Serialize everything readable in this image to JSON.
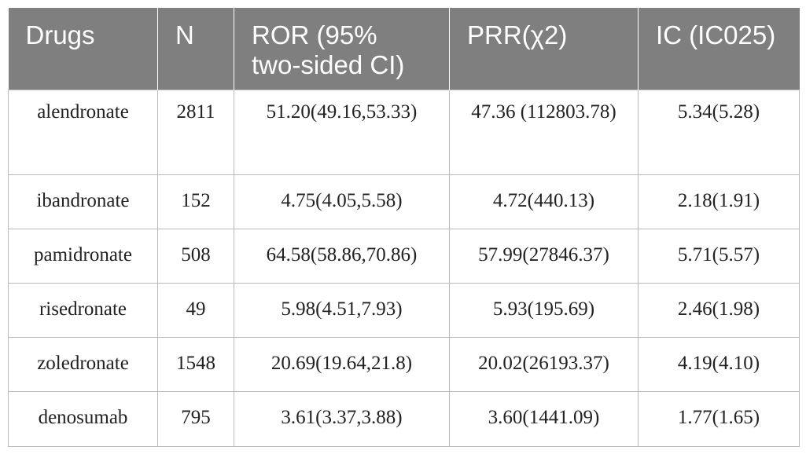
{
  "table": {
    "headers": {
      "drugs": "Drugs",
      "n": "N",
      "ror": "ROR (95% two-sided CI)",
      "prr": "PRR(χ2)",
      "ic": "IC (IC025)"
    },
    "rows": [
      {
        "drug": "alendronate",
        "n": "2811",
        "ror": "51.20(49.16,53.33)",
        "prr": "47.36 (112803.78)",
        "ic": "5.34(5.28)"
      },
      {
        "drug": "ibandronate",
        "n": "152",
        "ror": "4.75(4.05,5.58)",
        "prr": "4.72(440.13)",
        "ic": "2.18(1.91)"
      },
      {
        "drug": "pamidronate",
        "n": "508",
        "ror": "64.58(58.86,70.86)",
        "prr": "57.99(27846.37)",
        "ic": "5.71(5.57)"
      },
      {
        "drug": "risedronate",
        "n": "49",
        "ror": "5.98(4.51,7.93)",
        "prr": "5.93(195.69)",
        "ic": "2.46(1.98)"
      },
      {
        "drug": "zoledronate",
        "n": "1548",
        "ror": "20.69(19.64,21.8)",
        "prr": "20.02(26193.37)",
        "ic": "4.19(4.10)"
      },
      {
        "drug": "denosumab",
        "n": "795",
        "ror": "3.61(3.37,3.88)",
        "prr": "3.60(1441.09)",
        "ic": "1.77(1.65)"
      }
    ]
  },
  "colors": {
    "header_bg": "#7f7f7f",
    "header_text": "#ffffff",
    "border": "#b9b9b9",
    "body_text": "#222222"
  }
}
